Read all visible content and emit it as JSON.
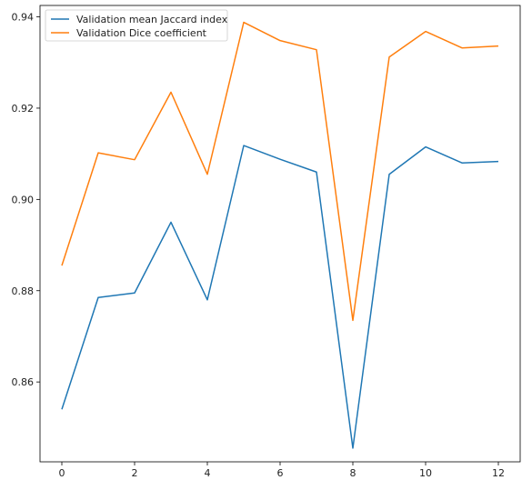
{
  "chart_data": {
    "type": "line",
    "title": "",
    "xlabel": "",
    "ylabel": "",
    "x": [
      0,
      1,
      2,
      3,
      4,
      5,
      6,
      7,
      8,
      9,
      10,
      11,
      12
    ],
    "xlim": [
      -0.6,
      12.6
    ],
    "ylim": [
      0.8425,
      0.9425
    ],
    "xticks": [
      0,
      2,
      4,
      6,
      8,
      10,
      12
    ],
    "yticks": [
      0.86,
      0.88,
      0.9,
      0.92,
      0.94
    ],
    "ytick_labels": [
      "0.86",
      "0.88",
      "0.90",
      "0.92",
      "0.94"
    ],
    "grid": false,
    "legend_position": "top-left",
    "series": [
      {
        "name": "Validation mean Jaccard index",
        "color": "#1f77b4",
        "values": [
          0.854,
          0.8785,
          0.8795,
          0.895,
          0.878,
          0.9118,
          0.9088,
          0.906,
          0.8455,
          0.9055,
          0.9115,
          0.908,
          0.9083
        ]
      },
      {
        "name": "Validation Dice coefficient",
        "color": "#ff7f0e",
        "values": [
          0.8855,
          0.9102,
          0.9087,
          0.9235,
          0.9055,
          0.9388,
          0.9348,
          0.9328,
          0.8735,
          0.9312,
          0.9368,
          0.9332,
          0.9336
        ]
      }
    ]
  }
}
